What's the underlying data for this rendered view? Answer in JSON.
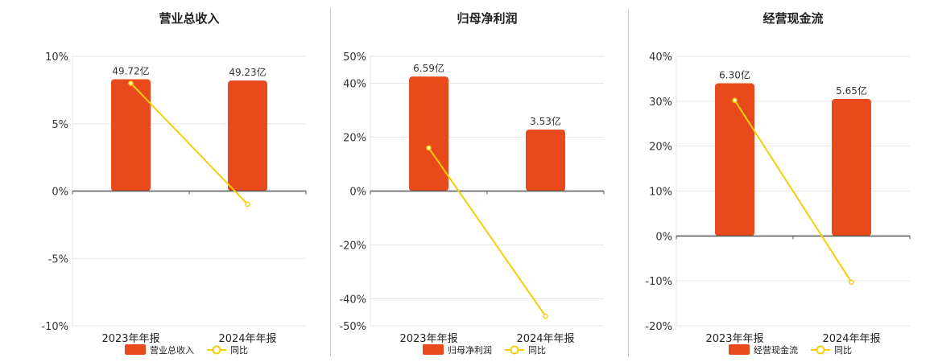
{
  "colors": {
    "bar": "#e84a1b",
    "line": "#f2cf0a",
    "axis": "#555555",
    "grid": "#e6e6e6"
  },
  "chart_data": [
    {
      "type": "bar",
      "title": "营业总收入",
      "categories": [
        "2023年年报",
        "2024年年报"
      ],
      "series": [
        {
          "name": "营业总收入",
          "type": "bar",
          "values": [
            8.3,
            8.2
          ],
          "labels": [
            "49.72亿",
            "49.23亿"
          ]
        },
        {
          "name": "同比",
          "type": "line",
          "values": [
            8.0,
            -0.98
          ]
        }
      ],
      "ylim": [
        -10,
        10
      ],
      "yticks": [
        10,
        5,
        0,
        -5,
        -10
      ],
      "ytick_labels": [
        "10%",
        "5%",
        "0%",
        "-5%",
        "-10%"
      ]
    },
    {
      "type": "bar",
      "title": "归母净利润",
      "categories": [
        "2023年年报",
        "2024年年报"
      ],
      "series": [
        {
          "name": "归母净利润",
          "type": "bar",
          "values": [
            42.5,
            22.8
          ],
          "labels": [
            "6.59亿",
            "3.53亿"
          ]
        },
        {
          "name": "同比",
          "type": "line",
          "values": [
            16.0,
            -46.4
          ]
        }
      ],
      "ylim": [
        -50,
        50
      ],
      "yticks": [
        50,
        40,
        20,
        0,
        -20,
        -40,
        -50
      ],
      "ytick_labels": [
        "50%",
        "40%",
        "20%",
        "0%",
        "-20%",
        "-40%",
        "-50%"
      ]
    },
    {
      "type": "bar",
      "title": "经营现金流",
      "categories": [
        "2023年年报",
        "2024年年报"
      ],
      "series": [
        {
          "name": "经营现金流",
          "type": "bar",
          "values": [
            34.0,
            30.5
          ],
          "labels": [
            "6.30亿",
            "5.65亿"
          ]
        },
        {
          "name": "同比",
          "type": "line",
          "values": [
            30.2,
            -10.3
          ]
        }
      ],
      "ylim": [
        -20,
        40
      ],
      "yticks": [
        40,
        30,
        20,
        10,
        0,
        -10,
        -20
      ],
      "ytick_labels": [
        "40%",
        "30%",
        "20%",
        "10%",
        "0%",
        "-10%",
        "-20%"
      ]
    }
  ]
}
